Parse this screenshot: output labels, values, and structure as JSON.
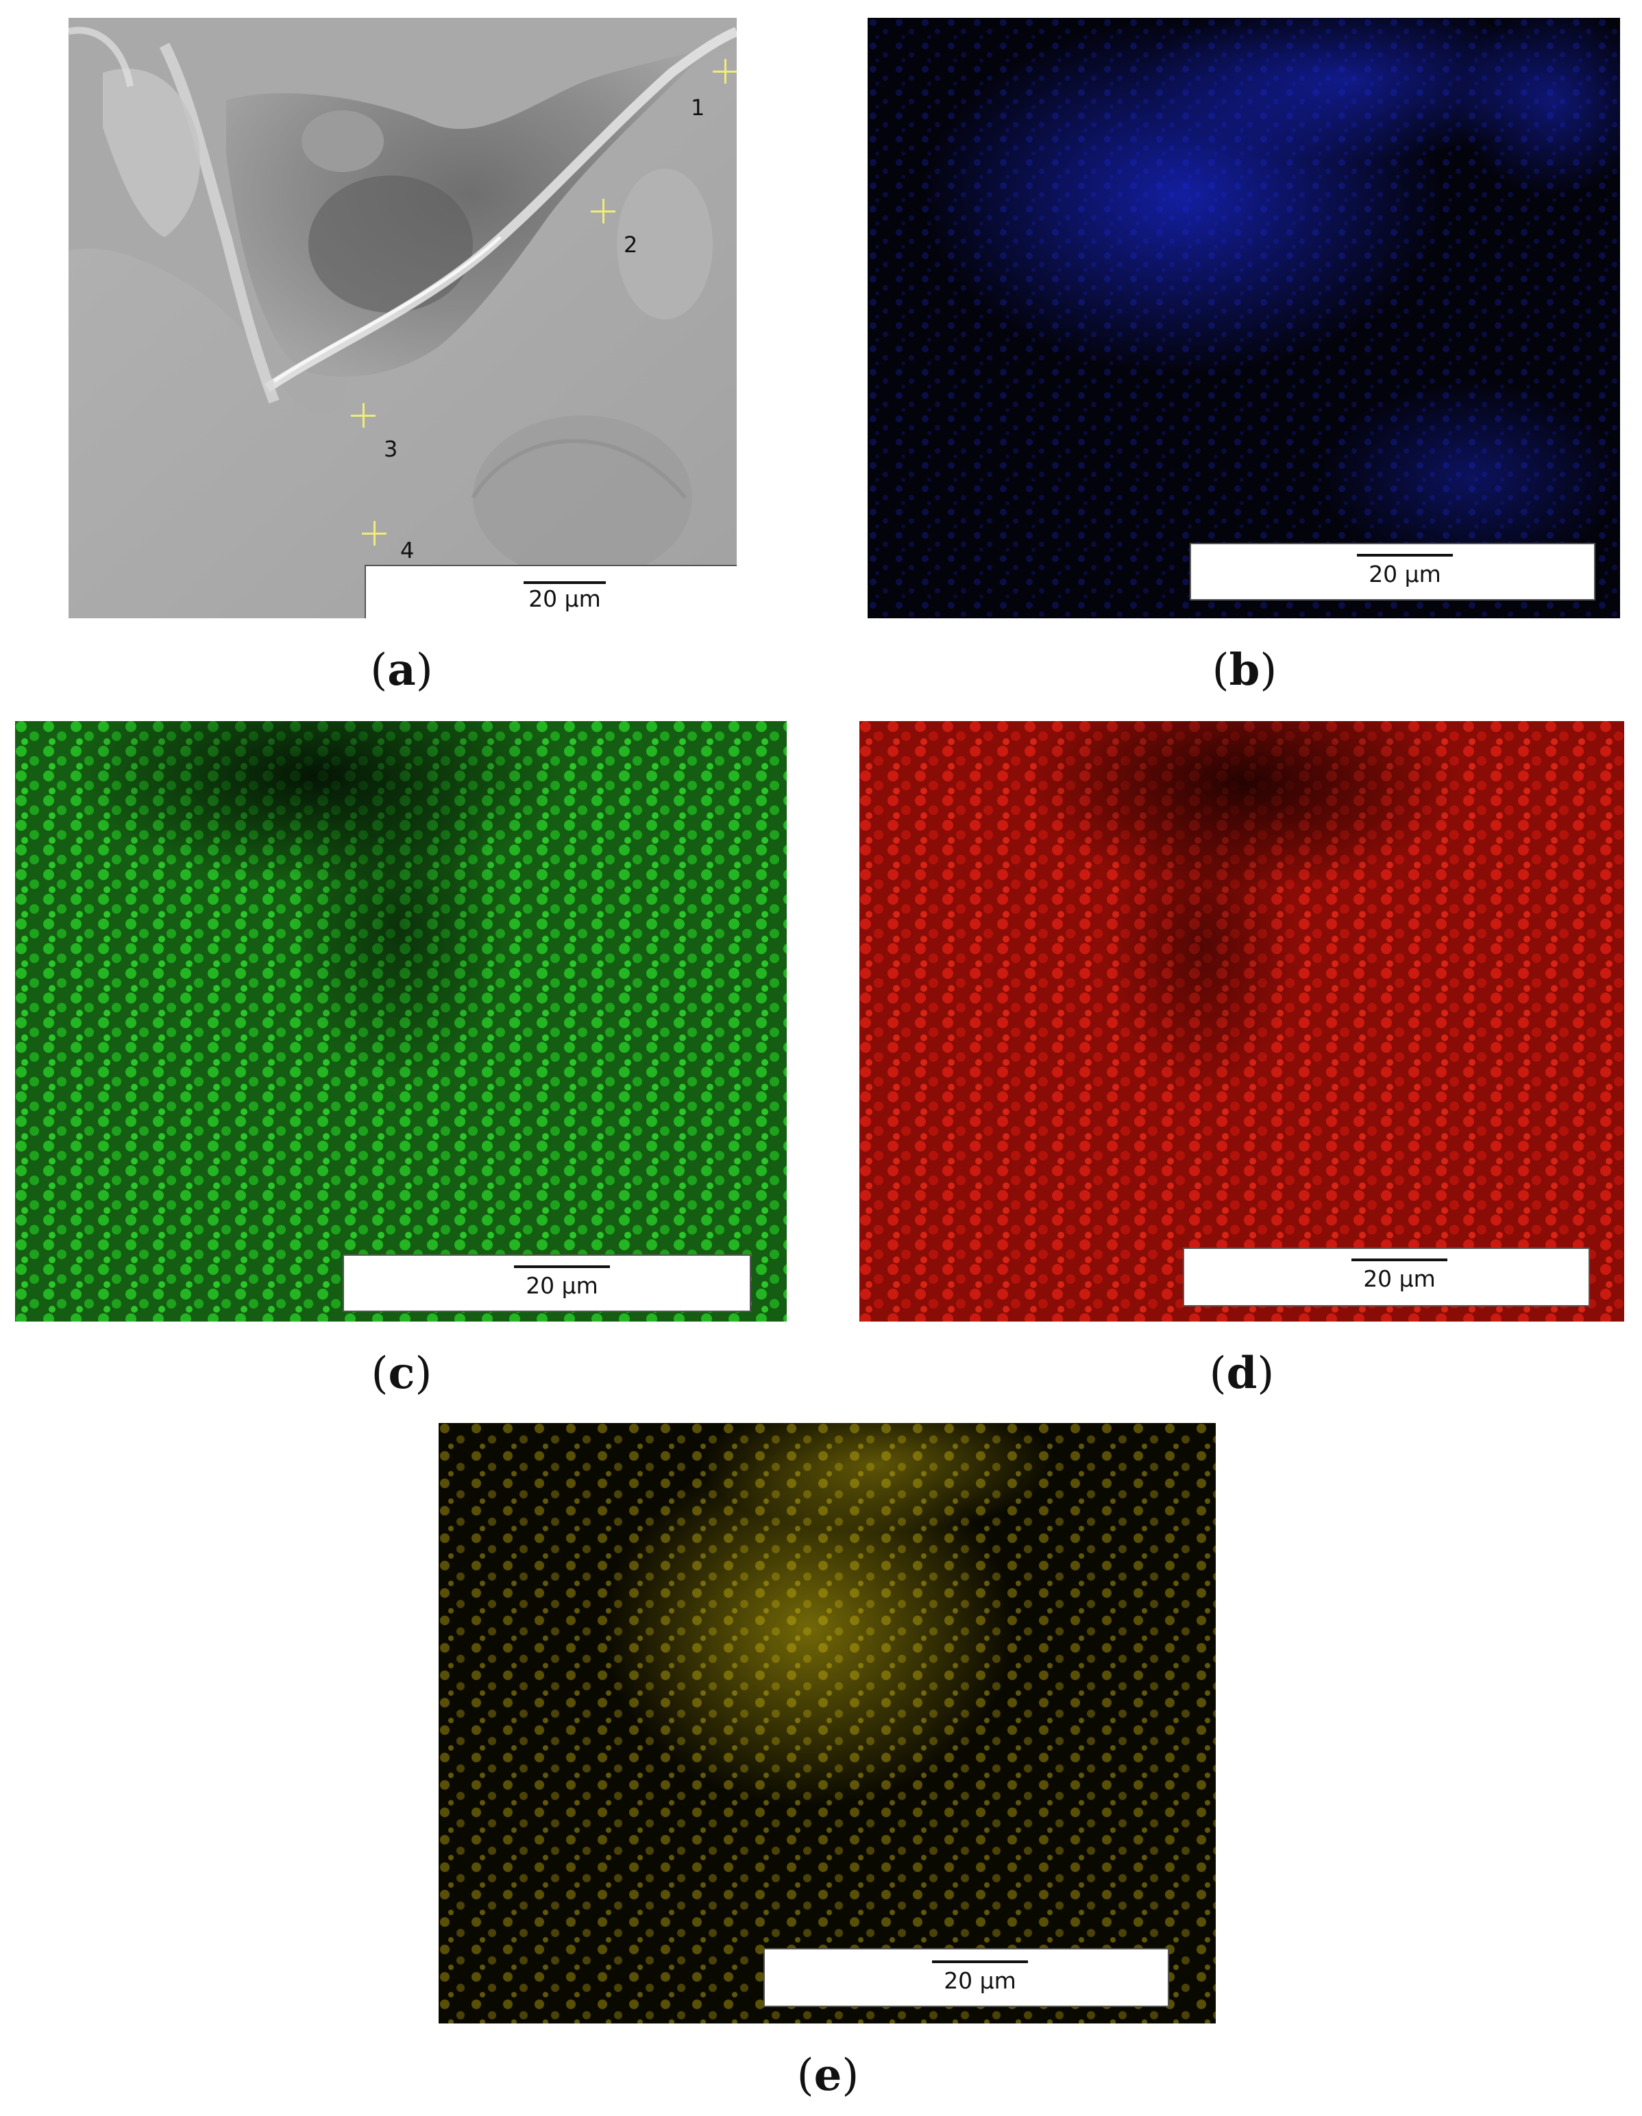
{
  "panels": {
    "a": {
      "caption_letter": "a",
      "scale_label": "20 μm",
      "markers": [
        "1",
        "2",
        "3",
        "4"
      ],
      "tint": "#9a9a9a"
    },
    "b": {
      "caption_letter": "b",
      "scale_label": "20 μm",
      "tint": "#1a2bd8"
    },
    "c": {
      "caption_letter": "c",
      "scale_label": "20 μm",
      "tint": "#1fd21f"
    },
    "d": {
      "caption_letter": "d",
      "scale_label": "20 μm",
      "tint": "#e0140c"
    },
    "e": {
      "caption_letter": "e",
      "scale_label": "20 μm",
      "tint": "#c7b40e"
    }
  }
}
